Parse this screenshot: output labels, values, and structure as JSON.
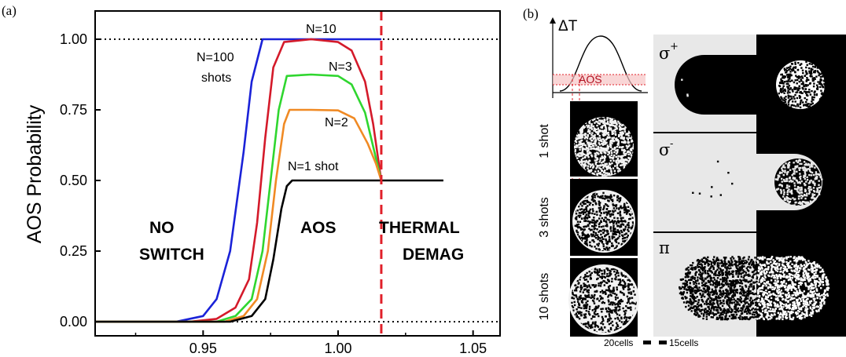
{
  "panel_a": {
    "label": "(a)",
    "regions": {
      "no_switch_1": "NO",
      "no_switch_2": "SWITCH",
      "aos": "AOS",
      "thermal_1": "THERMAL",
      "thermal_2": "DEMAG"
    },
    "curve_labels": {
      "n10": "N=10",
      "n100_1": "N=100",
      "n100_2": "shots",
      "n3": "N=3",
      "n2": "N=2",
      "n1": "N=1 shot"
    },
    "colors": {
      "n100": "#1a22d8",
      "n10": "#d41a2a",
      "n3": "#2fd62f",
      "n2": "#f08a24",
      "n1": "#000000",
      "boundary": "#e0202a"
    }
  },
  "chart_data": {
    "type": "line",
    "ylabel": "AOS Probability",
    "xlabel": "",
    "xlim": [
      0.91,
      1.06
    ],
    "ylim": [
      -0.05,
      1.1
    ],
    "x_ticks": [
      "0.95",
      "1.00",
      "1.05"
    ],
    "x_tick_values": [
      0.95,
      1.0,
      1.05
    ],
    "y_ticks": [
      "0.00",
      "0.25",
      "0.50",
      "0.75",
      "1.00"
    ],
    "y_tick_values": [
      0.0,
      0.25,
      0.5,
      0.75,
      1.0
    ],
    "reference_lines_y": [
      0.0,
      1.0
    ],
    "boundary_x": 1.016,
    "series": [
      {
        "name": "N=100 shots",
        "color": "#1a22d8",
        "x": [
          0.91,
          0.94,
          0.95,
          0.955,
          0.96,
          0.965,
          0.968,
          0.972,
          0.98,
          1.0,
          1.016
        ],
        "y": [
          0,
          0.0,
          0.02,
          0.08,
          0.25,
          0.6,
          0.85,
          1.0,
          1.0,
          1.0,
          1.0
        ]
      },
      {
        "name": "N=10",
        "color": "#d41a2a",
        "x": [
          0.91,
          0.945,
          0.955,
          0.962,
          0.967,
          0.97,
          0.973,
          0.976,
          0.98,
          0.99,
          1.0,
          1.005,
          1.01,
          1.013,
          1.016
        ],
        "y": [
          0,
          0.0,
          0.01,
          0.05,
          0.15,
          0.35,
          0.65,
          0.9,
          0.99,
          1.0,
          0.99,
          0.96,
          0.85,
          0.7,
          0.5
        ]
      },
      {
        "name": "N=3",
        "color": "#2fd62f",
        "x": [
          0.91,
          0.955,
          0.962,
          0.968,
          0.972,
          0.975,
          0.978,
          0.981,
          0.99,
          1.0,
          1.005,
          1.01,
          1.013,
          1.016
        ],
        "y": [
          0,
          0.0,
          0.02,
          0.08,
          0.25,
          0.5,
          0.75,
          0.87,
          0.875,
          0.87,
          0.84,
          0.74,
          0.62,
          0.5
        ]
      },
      {
        "name": "N=2",
        "color": "#f08a24",
        "x": [
          0.91,
          0.958,
          0.965,
          0.97,
          0.974,
          0.977,
          0.98,
          0.982,
          0.99,
          1.0,
          1.006,
          1.011,
          1.014,
          1.016
        ],
        "y": [
          0,
          0.0,
          0.02,
          0.08,
          0.25,
          0.5,
          0.7,
          0.75,
          0.75,
          0.748,
          0.72,
          0.63,
          0.56,
          0.5
        ]
      },
      {
        "name": "N=1 shot",
        "color": "#000000",
        "x": [
          0.91,
          0.96,
          0.968,
          0.973,
          0.976,
          0.979,
          0.981,
          0.983,
          0.99,
          1.0,
          1.016,
          1.039
        ],
        "y": [
          0,
          0.0,
          0.02,
          0.08,
          0.22,
          0.4,
          0.48,
          0.5,
          0.5,
          0.5,
          0.5,
          0.5
        ]
      }
    ]
  },
  "panel_b": {
    "label": "(b)",
    "delta_t": "ΔT",
    "aos_label": "AOS",
    "shot_labels": [
      "1 shot",
      "3 shots",
      "10 shots"
    ],
    "pol_sigma_plus": "σ",
    "pol_sigma_plus_sup": "+",
    "pol_sigma_minus": "σ",
    "pol_sigma_minus_sup": "-",
    "pol_pi": "π",
    "scale_left": "20cells",
    "scale_right": "15cells"
  }
}
